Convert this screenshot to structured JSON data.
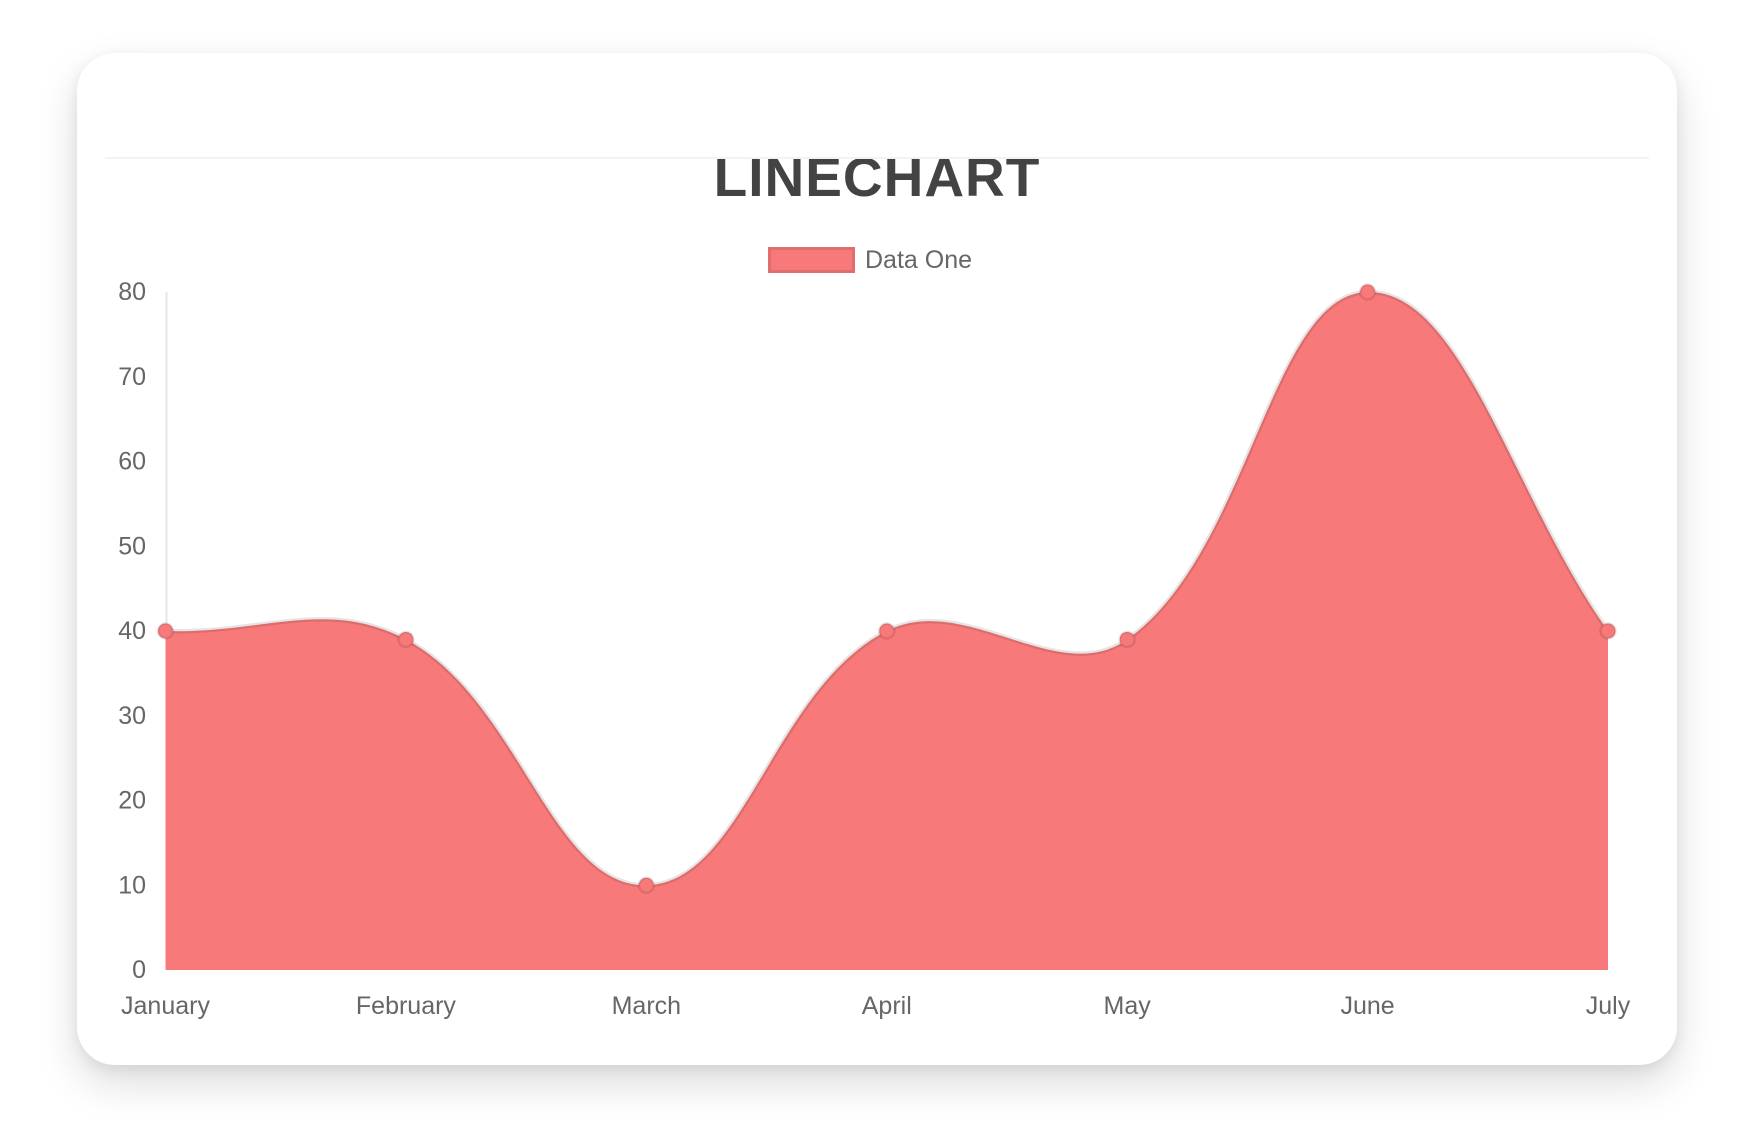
{
  "header": {
    "title": "LINECHART"
  },
  "legend": {
    "position": "top",
    "items": [
      {
        "label": "Data One",
        "swatch_color": "#f87979"
      }
    ]
  },
  "chart_data": {
    "type": "line",
    "title": "LINECHART",
    "categories": [
      "January",
      "February",
      "March",
      "April",
      "May",
      "June",
      "July"
    ],
    "series": [
      {
        "name": "Data One",
        "values": [
          40,
          39,
          10,
          40,
          39,
          80,
          40
        ],
        "fill_color": "#f87979",
        "line_color": "rgba(0,0,0,0.10)",
        "point_color": "#f87979",
        "point_border_color": "rgba(0,0,0,0.10)"
      }
    ],
    "ylim": [
      0,
      80
    ],
    "yticks": [
      0,
      10,
      20,
      30,
      40,
      50,
      60,
      70,
      80
    ],
    "xlabel": "",
    "ylabel": "",
    "grid": false,
    "area_fill": true,
    "smooth_tension": 0.4,
    "legend_position": "top",
    "tick_color": "#666666",
    "axis_line_color": "#e7e7e7"
  }
}
